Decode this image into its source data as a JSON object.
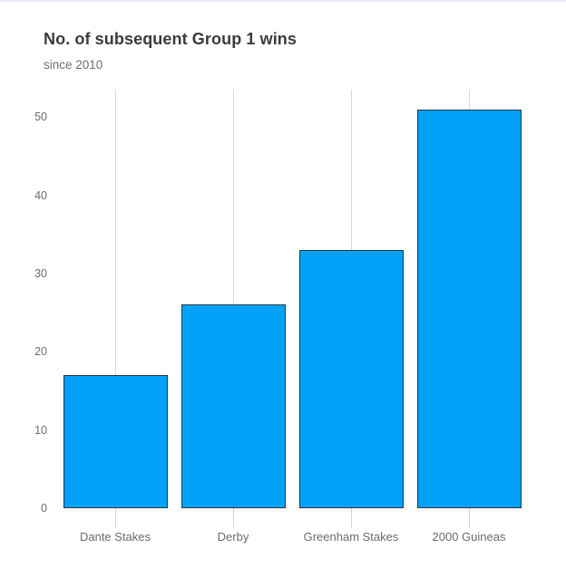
{
  "page": {
    "title": "No. of subsequent Group 1 wins",
    "subtitle": "since 2010"
  },
  "chart_data": {
    "type": "bar",
    "title": "No. of subsequent Group 1 wins",
    "subtitle": "since 2010",
    "categories": [
      "Dante Stakes",
      "Derby",
      "Greenham Stakes",
      "2000 Guineas"
    ],
    "values": [
      17,
      26,
      33,
      51
    ],
    "xlabel": "",
    "ylabel": "",
    "y_ticks": [
      0,
      10,
      20,
      30,
      40,
      50
    ],
    "ylim": [
      0,
      53.5
    ],
    "grid": "vertical-category-gridlines",
    "legend": "none",
    "colors": {
      "bar_fill": "#00a1f7",
      "bar_border": "#2e353c",
      "gridline": "#d9d9d9",
      "axis_text": "#6b6b6b",
      "title_text": "#3b3b3b",
      "subtitle_text": "#6f6f6f"
    }
  }
}
